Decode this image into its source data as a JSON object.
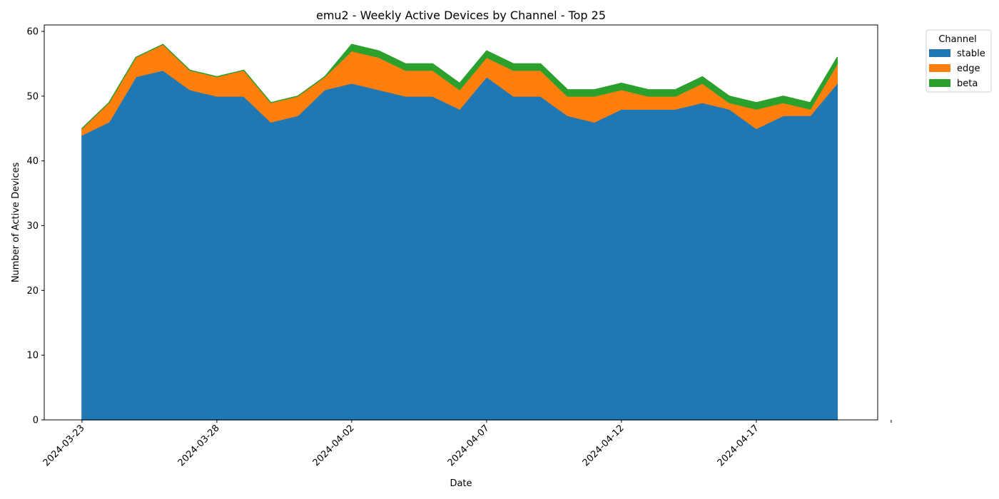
{
  "chart_data": {
    "type": "area",
    "stacked": true,
    "title": "emu2 - Weekly Active Devices by Channel - Top 25",
    "xlabel": "Date",
    "ylabel": "Number of Active Devices",
    "x": [
      "2024-03-23",
      "2024-03-24",
      "2024-03-25",
      "2024-03-26",
      "2024-03-27",
      "2024-03-28",
      "2024-03-29",
      "2024-03-30",
      "2024-03-31",
      "2024-04-01",
      "2024-04-02",
      "2024-04-03",
      "2024-04-04",
      "2024-04-05",
      "2024-04-06",
      "2024-04-07",
      "2024-04-08",
      "2024-04-09",
      "2024-04-10",
      "2024-04-11",
      "2024-04-12",
      "2024-04-13",
      "2024-04-14",
      "2024-04-15",
      "2024-04-16",
      "2024-04-17",
      "2024-04-18",
      "2024-04-19",
      "2024-04-20"
    ],
    "series": [
      {
        "name": "stable",
        "color": "#1f77b4",
        "values": [
          44,
          46,
          53,
          54,
          51,
          50,
          50,
          46,
          47,
          51,
          52,
          51,
          50,
          50,
          48,
          53,
          50,
          50,
          47,
          46,
          48,
          48,
          48,
          49,
          48,
          45,
          47,
          47,
          52
        ]
      },
      {
        "name": "edge",
        "color": "#ff7f0e",
        "values": [
          1,
          3,
          3,
          4,
          3,
          3,
          4,
          3,
          3,
          2,
          5,
          5,
          4,
          4,
          3,
          3,
          4,
          4,
          3,
          4,
          3,
          2,
          2,
          3,
          1,
          3,
          2,
          1,
          3
        ]
      },
      {
        "name": "beta",
        "color": "#2ca02c",
        "values": [
          0,
          0,
          0,
          0,
          0,
          0,
          0,
          0,
          0,
          0,
          1,
          1,
          1,
          1,
          1,
          1,
          1,
          1,
          1,
          1,
          1,
          1,
          1,
          1,
          1,
          1,
          1,
          1,
          1
        ]
      }
    ],
    "xlim": [
      "2024-03-21.6",
      "2024-04-21.5"
    ],
    "ylim": [
      0,
      61
    ],
    "yticks": [
      0,
      10,
      20,
      30,
      40,
      50,
      60
    ],
    "xticks": [
      "2024-03-23",
      "2024-03-28",
      "2024-04-02",
      "2024-04-07",
      "2024-04-12",
      "2024-04-17"
    ],
    "xticks_unlabeled": [
      "2024-04-22"
    ],
    "legend": {
      "title": "Channel",
      "position": "outside-top-right"
    },
    "grid": false
  }
}
